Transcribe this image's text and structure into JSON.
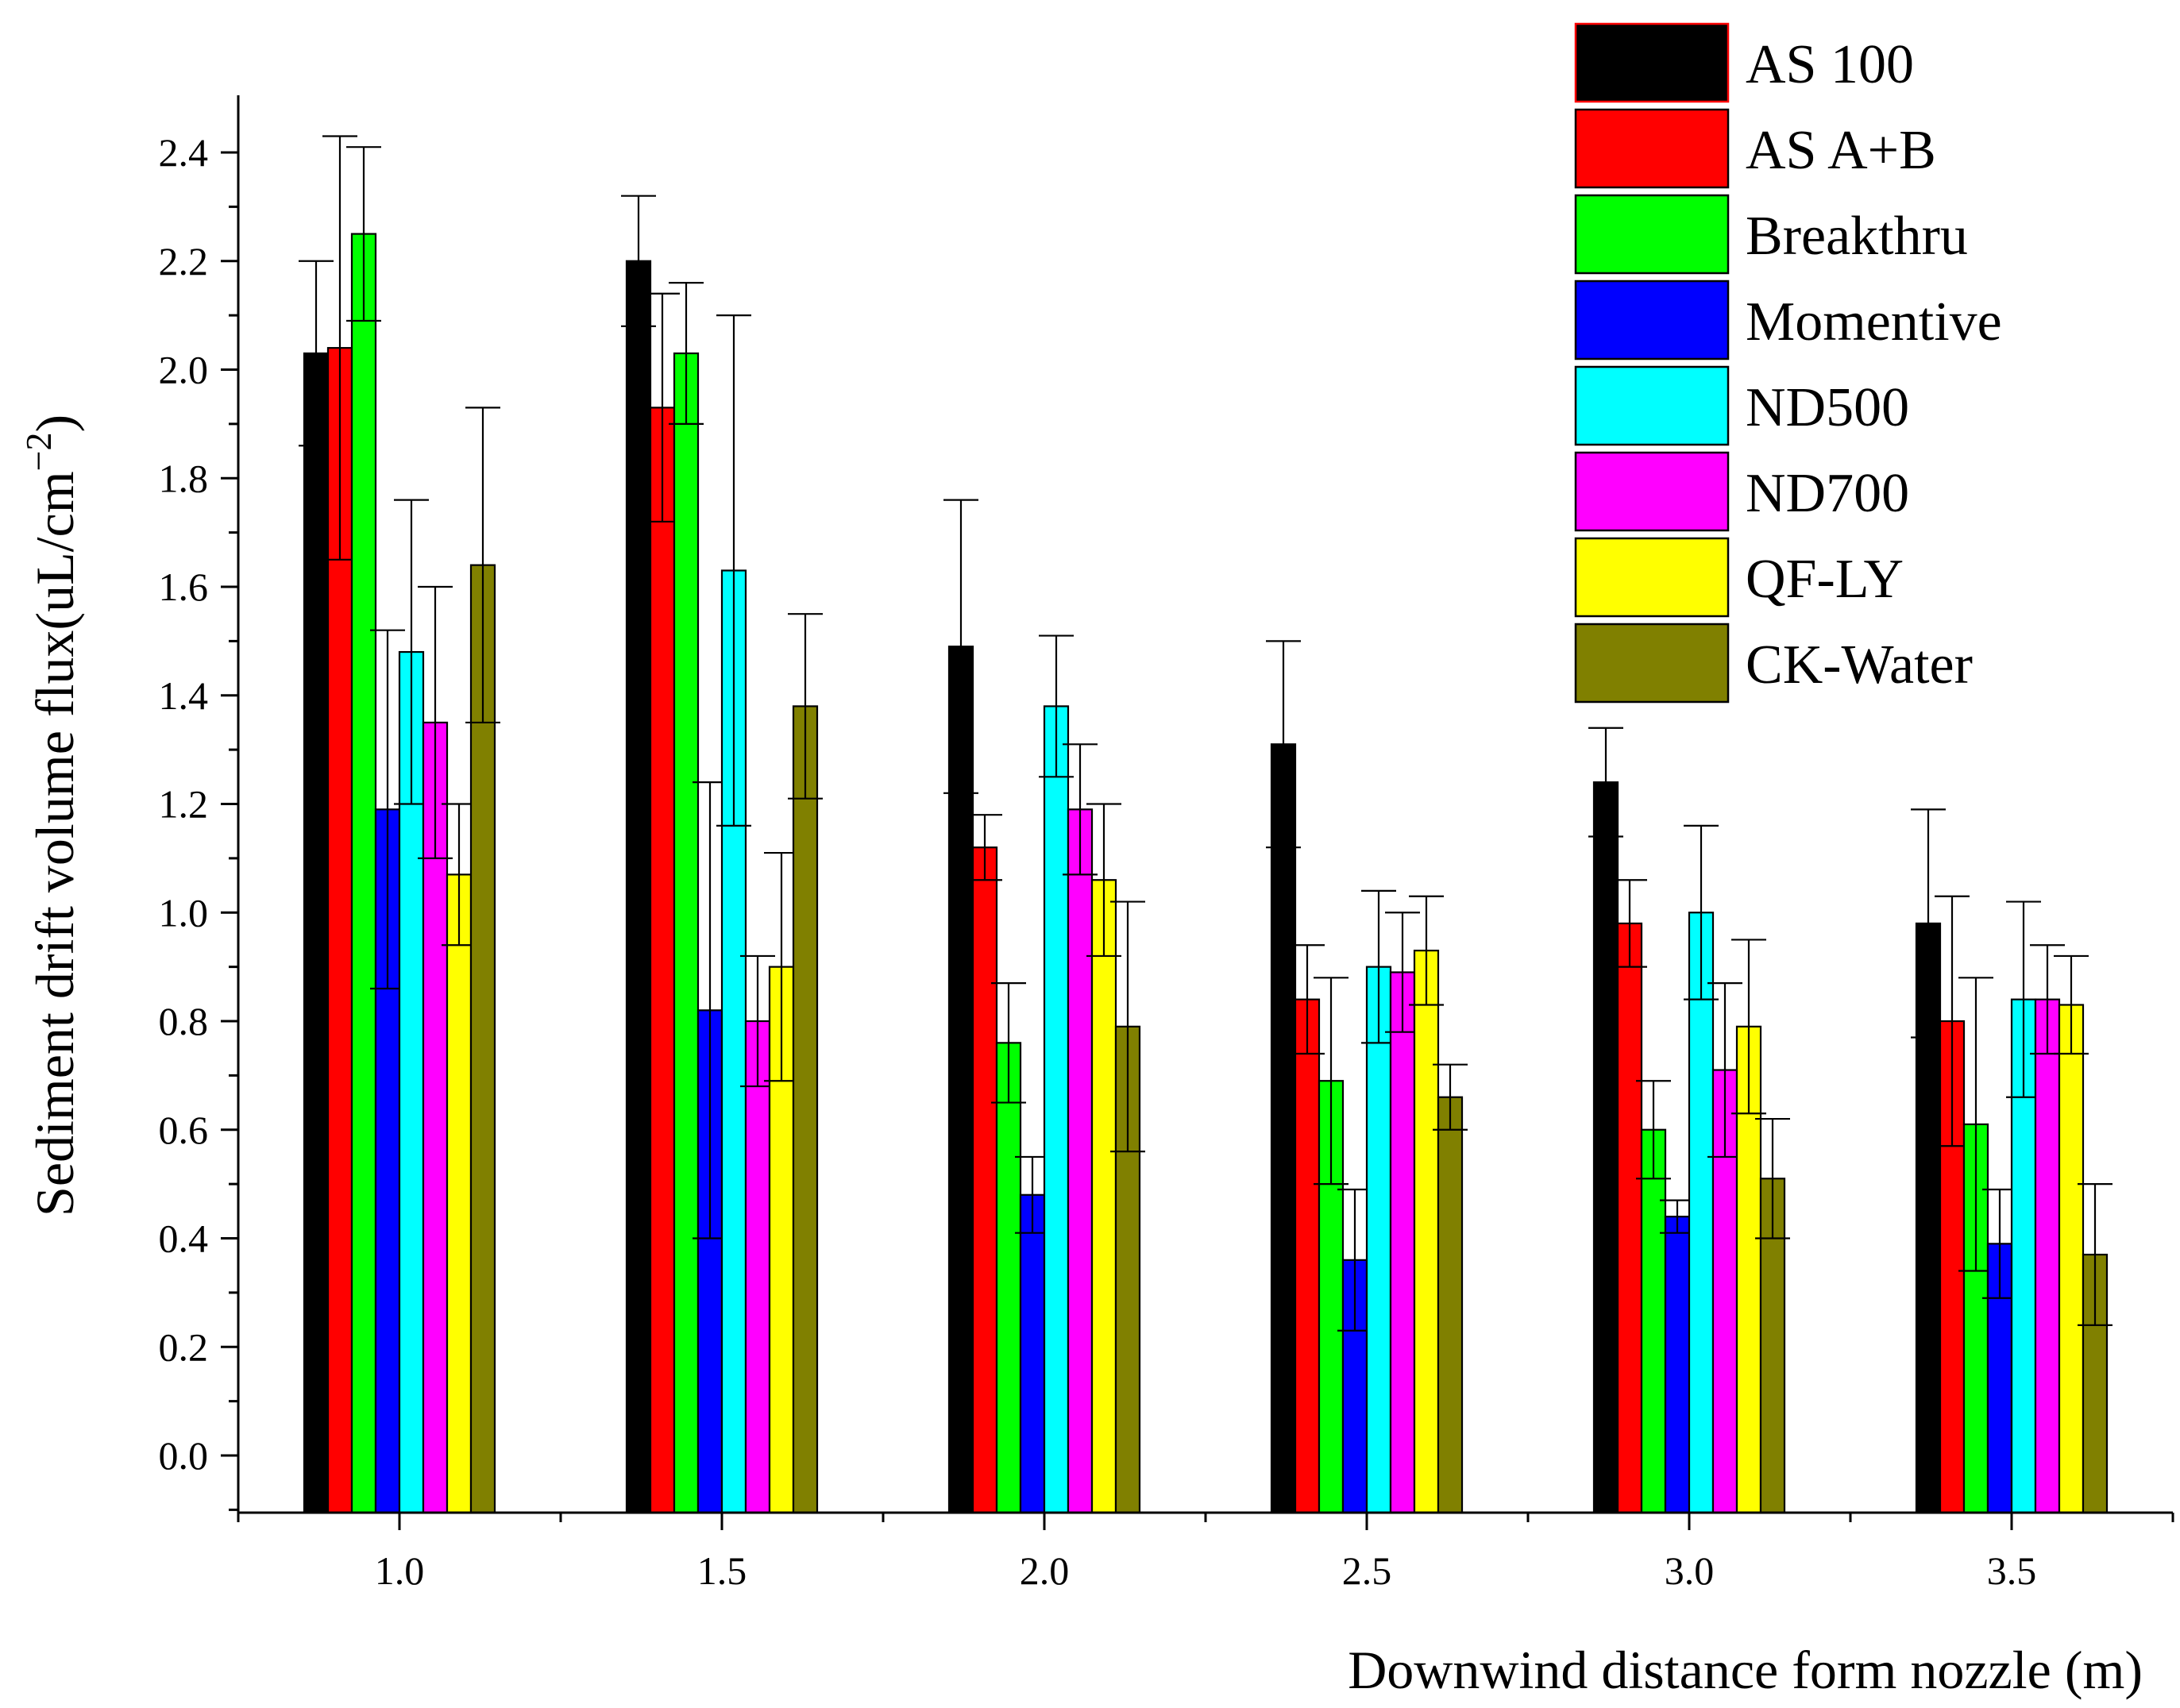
{
  "chart_data": {
    "type": "bar",
    "title": "",
    "xlabel": "Downwind distance form nozzle (m)",
    "ylabel": "Sediment drift volume flux(uL/cm",
    "ylabel_superscript": "−2",
    "ylabel_suffix": ")",
    "ylim": [
      -0.1,
      2.5
    ],
    "yticks": [
      0.0,
      0.2,
      0.4,
      0.6,
      0.8,
      1.0,
      1.2,
      1.4,
      1.6,
      1.8,
      2.0,
      2.2,
      2.4
    ],
    "ytick_labels": [
      "0.0",
      "0.2",
      "0.4",
      "0.6",
      "0.8",
      "1.0",
      "1.2",
      "1.4",
      "1.6",
      "1.8",
      "2.0",
      "2.2",
      "2.4"
    ],
    "xlim": [
      0.75,
      3.75
    ],
    "categories": [
      "1.0",
      "1.5",
      "2.0",
      "2.5",
      "3.0",
      "3.5"
    ],
    "x": [
      1.0,
      1.5,
      2.0,
      2.5,
      3.0,
      3.5
    ],
    "legend_position": "top-right",
    "grid": false,
    "series": [
      {
        "name": "AS 100",
        "color": "#000000",
        "values": [
          2.03,
          2.2,
          1.49,
          1.31,
          1.24,
          0.98
        ],
        "errors": [
          0.17,
          0.12,
          0.27,
          0.19,
          0.1,
          0.21
        ]
      },
      {
        "name": "AS A+B",
        "color": "#ff0000",
        "values": [
          2.04,
          1.93,
          1.12,
          0.84,
          0.98,
          0.8
        ],
        "errors": [
          0.39,
          0.21,
          0.06,
          0.1,
          0.08,
          0.23
        ]
      },
      {
        "name": "Breakthru",
        "color": "#00ff00",
        "values": [
          2.25,
          2.03,
          0.76,
          0.69,
          0.6,
          0.61
        ],
        "errors": [
          0.16,
          0.13,
          0.11,
          0.19,
          0.09,
          0.27
        ]
      },
      {
        "name": "Momentive",
        "color": "#0000ff",
        "values": [
          1.19,
          0.82,
          0.48,
          0.36,
          0.44,
          0.39
        ],
        "errors": [
          0.33,
          0.42,
          0.07,
          0.13,
          0.03,
          0.1
        ]
      },
      {
        "name": "ND500",
        "color": "#00ffff",
        "values": [
          1.48,
          1.63,
          1.38,
          0.9,
          1.0,
          0.84
        ],
        "errors": [
          0.28,
          0.47,
          0.13,
          0.14,
          0.16,
          0.18
        ]
      },
      {
        "name": "ND700",
        "color": "#ff00ff",
        "values": [
          1.35,
          0.8,
          1.19,
          0.89,
          0.71,
          0.84
        ],
        "errors": [
          0.25,
          0.12,
          0.12,
          0.11,
          0.16,
          0.1
        ]
      },
      {
        "name": "QF-LY",
        "color": "#ffff00",
        "values": [
          1.07,
          0.9,
          1.06,
          0.93,
          0.79,
          0.83
        ],
        "errors": [
          0.13,
          0.21,
          0.14,
          0.1,
          0.16,
          0.09
        ]
      },
      {
        "name": "CK-Water",
        "color": "#808000",
        "values": [
          1.64,
          1.38,
          0.79,
          0.66,
          0.51,
          0.37
        ],
        "errors": [
          0.29,
          0.17,
          0.23,
          0.06,
          0.11,
          0.13
        ]
      }
    ]
  }
}
